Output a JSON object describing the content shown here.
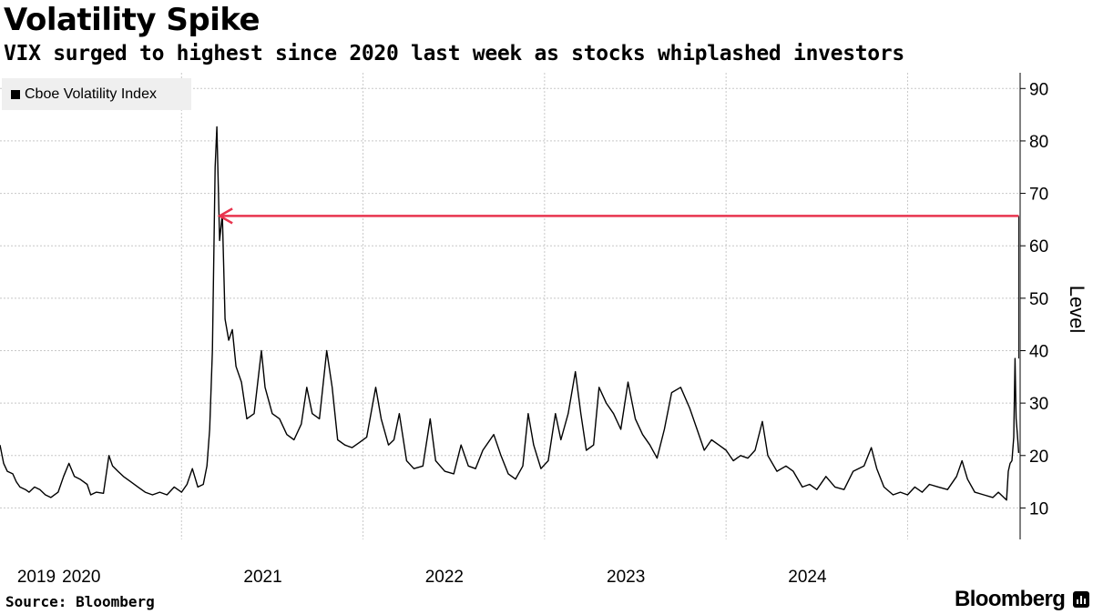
{
  "title": "Volatility Spike",
  "subtitle": "VIX surged to highest since 2020 last week as stocks whiplashed investors",
  "source": "Source: Bloomberg",
  "brand": "Bloomberg",
  "colors": {
    "series": "#000000",
    "arrow": "#e8344e",
    "grid": "#c8c8c8",
    "legend_bg": "#efefef"
  },
  "chart_data": {
    "type": "line",
    "title": "Volatility Spike",
    "subtitle": "VIX surged to highest since 2020 last week as stocks whiplashed investors",
    "xlabel": "",
    "ylabel": "Level",
    "ylim": [
      4,
      93
    ],
    "yticks": [
      10,
      20,
      30,
      40,
      50,
      60,
      70,
      80,
      90
    ],
    "xlim": [
      2019.0,
      2024.62
    ],
    "xticks": [
      {
        "label": "2019",
        "year": 2019.0
      },
      {
        "label": "2020",
        "year": 2020.0
      },
      {
        "label": "2021",
        "year": 2021.0
      },
      {
        "label": "2022",
        "year": 2022.0
      },
      {
        "label": "2023",
        "year": 2023.0
      },
      {
        "label": "2024",
        "year": 2024.0
      }
    ],
    "grid": true,
    "legend": "top-left",
    "series": [
      {
        "name": "Cboe Volatility Index",
        "color": "#000000",
        "points": [
          [
            2019.0,
            22.0
          ],
          [
            2019.02,
            18.5
          ],
          [
            2019.04,
            17.0
          ],
          [
            2019.07,
            16.5
          ],
          [
            2019.09,
            15.0
          ],
          [
            2019.11,
            14.0
          ],
          [
            2019.14,
            13.5
          ],
          [
            2019.16,
            13.0
          ],
          [
            2019.19,
            14.0
          ],
          [
            2019.22,
            13.5
          ],
          [
            2019.25,
            12.5
          ],
          [
            2019.28,
            12.0
          ],
          [
            2019.32,
            13.0
          ],
          [
            2019.35,
            16.0
          ],
          [
            2019.38,
            18.5
          ],
          [
            2019.41,
            16.0
          ],
          [
            2019.44,
            15.5
          ],
          [
            2019.48,
            14.5
          ],
          [
            2019.5,
            12.5
          ],
          [
            2019.53,
            13.0
          ],
          [
            2019.57,
            12.8
          ],
          [
            2019.6,
            20.0
          ],
          [
            2019.62,
            18.0
          ],
          [
            2019.65,
            17.0
          ],
          [
            2019.68,
            16.0
          ],
          [
            2019.72,
            15.0
          ],
          [
            2019.76,
            14.0
          ],
          [
            2019.8,
            13.0
          ],
          [
            2019.84,
            12.5
          ],
          [
            2019.88,
            13.0
          ],
          [
            2019.92,
            12.5
          ],
          [
            2019.96,
            14.0
          ],
          [
            2020.0,
            13.0
          ],
          [
            2020.03,
            14.5
          ],
          [
            2020.06,
            17.5
          ],
          [
            2020.09,
            14.0
          ],
          [
            2020.12,
            14.5
          ],
          [
            2020.14,
            18.0
          ],
          [
            2020.155,
            25.0
          ],
          [
            2020.17,
            40.0
          ],
          [
            2020.185,
            75.0
          ],
          [
            2020.195,
            82.7
          ],
          [
            2020.21,
            61.0
          ],
          [
            2020.225,
            66.0
          ],
          [
            2020.24,
            46.0
          ],
          [
            2020.26,
            42.0
          ],
          [
            2020.28,
            44.0
          ],
          [
            2020.3,
            37.0
          ],
          [
            2020.33,
            34.0
          ],
          [
            2020.36,
            27.0
          ],
          [
            2020.4,
            28.0
          ],
          [
            2020.44,
            40.0
          ],
          [
            2020.46,
            33.0
          ],
          [
            2020.5,
            28.0
          ],
          [
            2020.54,
            27.0
          ],
          [
            2020.58,
            24.0
          ],
          [
            2020.62,
            23.0
          ],
          [
            2020.66,
            26.0
          ],
          [
            2020.69,
            33.0
          ],
          [
            2020.72,
            28.0
          ],
          [
            2020.76,
            27.0
          ],
          [
            2020.8,
            40.0
          ],
          [
            2020.83,
            33.0
          ],
          [
            2020.86,
            23.0
          ],
          [
            2020.9,
            22.0
          ],
          [
            2020.94,
            21.5
          ],
          [
            2020.98,
            22.5
          ],
          [
            2021.02,
            23.5
          ],
          [
            2021.07,
            33.0
          ],
          [
            2021.1,
            27.0
          ],
          [
            2021.14,
            22.0
          ],
          [
            2021.17,
            23.0
          ],
          [
            2021.2,
            28.0
          ],
          [
            2021.24,
            19.0
          ],
          [
            2021.28,
            17.5
          ],
          [
            2021.33,
            18.0
          ],
          [
            2021.37,
            27.0
          ],
          [
            2021.4,
            19.0
          ],
          [
            2021.45,
            17.0
          ],
          [
            2021.5,
            16.5
          ],
          [
            2021.54,
            22.0
          ],
          [
            2021.58,
            18.0
          ],
          [
            2021.62,
            17.5
          ],
          [
            2021.66,
            21.0
          ],
          [
            2021.72,
            24.0
          ],
          [
            2021.76,
            20.0
          ],
          [
            2021.8,
            16.5
          ],
          [
            2021.84,
            15.5
          ],
          [
            2021.88,
            18.0
          ],
          [
            2021.91,
            28.0
          ],
          [
            2021.94,
            22.0
          ],
          [
            2021.98,
            17.5
          ],
          [
            2022.02,
            19.0
          ],
          [
            2022.06,
            28.0
          ],
          [
            2022.09,
            23.0
          ],
          [
            2022.13,
            28.0
          ],
          [
            2022.17,
            36.0
          ],
          [
            2022.2,
            28.0
          ],
          [
            2022.23,
            21.0
          ],
          [
            2022.27,
            22.0
          ],
          [
            2022.3,
            33.0
          ],
          [
            2022.34,
            30.0
          ],
          [
            2022.38,
            28.0
          ],
          [
            2022.42,
            25.0
          ],
          [
            2022.46,
            34.0
          ],
          [
            2022.5,
            27.0
          ],
          [
            2022.54,
            24.0
          ],
          [
            2022.58,
            22.0
          ],
          [
            2022.62,
            19.5
          ],
          [
            2022.66,
            25.0
          ],
          [
            2022.7,
            32.0
          ],
          [
            2022.75,
            33.0
          ],
          [
            2022.8,
            29.0
          ],
          [
            2022.84,
            25.0
          ],
          [
            2022.88,
            21.0
          ],
          [
            2022.92,
            23.0
          ],
          [
            2022.96,
            22.0
          ],
          [
            2023.0,
            21.0
          ],
          [
            2023.04,
            19.0
          ],
          [
            2023.08,
            20.0
          ],
          [
            2023.12,
            19.5
          ],
          [
            2023.16,
            21.0
          ],
          [
            2023.2,
            26.5
          ],
          [
            2023.23,
            20.0
          ],
          [
            2023.28,
            17.0
          ],
          [
            2023.33,
            18.0
          ],
          [
            2023.37,
            17.0
          ],
          [
            2023.42,
            14.0
          ],
          [
            2023.46,
            14.5
          ],
          [
            2023.5,
            13.5
          ],
          [
            2023.55,
            16.0
          ],
          [
            2023.6,
            14.0
          ],
          [
            2023.65,
            13.5
          ],
          [
            2023.7,
            17.0
          ],
          [
            2023.76,
            18.0
          ],
          [
            2023.8,
            21.5
          ],
          [
            2023.83,
            17.5
          ],
          [
            2023.87,
            14.0
          ],
          [
            2023.92,
            12.5
          ],
          [
            2023.96,
            13.0
          ],
          [
            2024.0,
            12.5
          ],
          [
            2024.04,
            14.0
          ],
          [
            2024.08,
            13.0
          ],
          [
            2024.12,
            14.5
          ],
          [
            2024.17,
            14.0
          ],
          [
            2024.22,
            13.5
          ],
          [
            2024.27,
            16.0
          ],
          [
            2024.3,
            19.0
          ],
          [
            2024.33,
            15.5
          ],
          [
            2024.37,
            13.0
          ],
          [
            2024.42,
            12.5
          ],
          [
            2024.47,
            12.0
          ],
          [
            2024.5,
            13.0
          ],
          [
            2024.53,
            12.0
          ],
          [
            2024.545,
            11.5
          ],
          [
            2024.555,
            17.0
          ],
          [
            2024.565,
            18.5
          ],
          [
            2024.575,
            19.0
          ],
          [
            2024.585,
            23.5
          ],
          [
            2024.592,
            38.5
          ],
          [
            2024.598,
            27.0
          ],
          [
            2024.605,
            24.0
          ],
          [
            2024.612,
            20.5
          ]
        ]
      }
    ],
    "annotations": [
      {
        "type": "arrow",
        "from": [
          2024.612,
          65.7
        ],
        "to": [
          2020.21,
          65.7
        ],
        "color": "#e8344e",
        "meaning": "intraday high of about 65 not seen since 2020"
      }
    ]
  }
}
